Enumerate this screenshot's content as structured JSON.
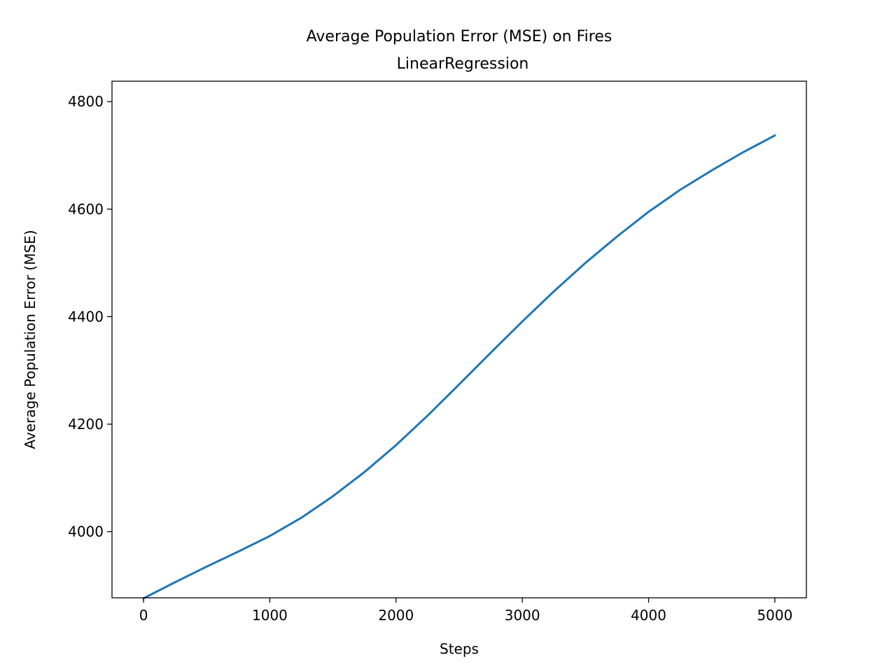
{
  "chart_data": {
    "type": "line",
    "title": "Average Population Error (MSE) on Fires",
    "subtitle": "LinearRegression",
    "xlabel": "Steps",
    "ylabel": "Average Population Error (MSE)",
    "xlim": [
      -250,
      5250
    ],
    "ylim": [
      3877,
      4838
    ],
    "xticks": [
      0,
      1000,
      2000,
      3000,
      4000,
      5000
    ],
    "yticks": [
      4000,
      4200,
      4400,
      4600,
      4800
    ],
    "grid": false,
    "series": [
      {
        "color": "#1f77b4",
        "x": [
          0,
          250,
          500,
          750,
          1000,
          1250,
          1500,
          1750,
          2000,
          2250,
          2500,
          2750,
          3000,
          3250,
          3500,
          3750,
          4000,
          4250,
          4500,
          4750,
          5000
        ],
        "y": [
          3876,
          3906,
          3935,
          3963,
          3992,
          4026,
          4066,
          4111,
          4161,
          4216,
          4274,
          4333,
          4391,
          4447,
          4500,
          4549,
          4595,
          4636,
          4672,
          4706,
          4737
        ]
      }
    ]
  }
}
